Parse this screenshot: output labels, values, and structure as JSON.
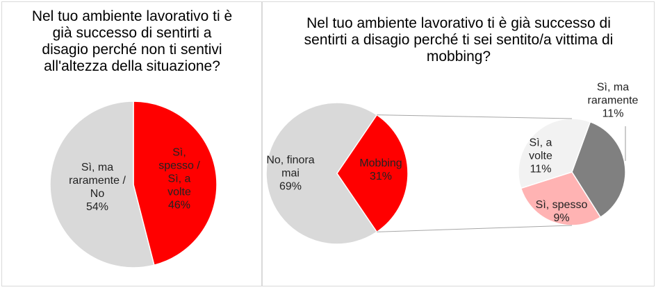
{
  "chart_data": [
    {
      "type": "pie",
      "title": "Nel tuo ambiente lavorativo ti è già successo di sentirti a disagio perché non ti sentivi all'altezza della situazione?",
      "categories": [
        "Sì, spesso / Sì, a volte",
        "Sì, ma raramente / No"
      ],
      "values": [
        46,
        54
      ],
      "value_labels": [
        "46%",
        "54%"
      ],
      "colors": [
        "#ff0000",
        "#d9d9d9"
      ]
    },
    {
      "type": "pie",
      "title": "Nel tuo ambiente lavorativo ti è già successo di sentirti a disagio perché ti sei sentito/a vittima di mobbing?",
      "categories": [
        "No, finora mai",
        "Mobbing"
      ],
      "values": [
        69,
        31
      ],
      "value_labels": [
        "69%",
        "31%"
      ],
      "colors": [
        "#d9d9d9",
        "#ff0000"
      ],
      "secondary": {
        "categories": [
          "Sì, ma raramente",
          "Sì, spesso",
          "Sì, a volte"
        ],
        "values": [
          11,
          9,
          11
        ],
        "value_labels": [
          "11%",
          "9%",
          "11%"
        ],
        "colors": [
          "#808080",
          "#ffb3b3",
          "#f2f2f2"
        ]
      }
    }
  ]
}
